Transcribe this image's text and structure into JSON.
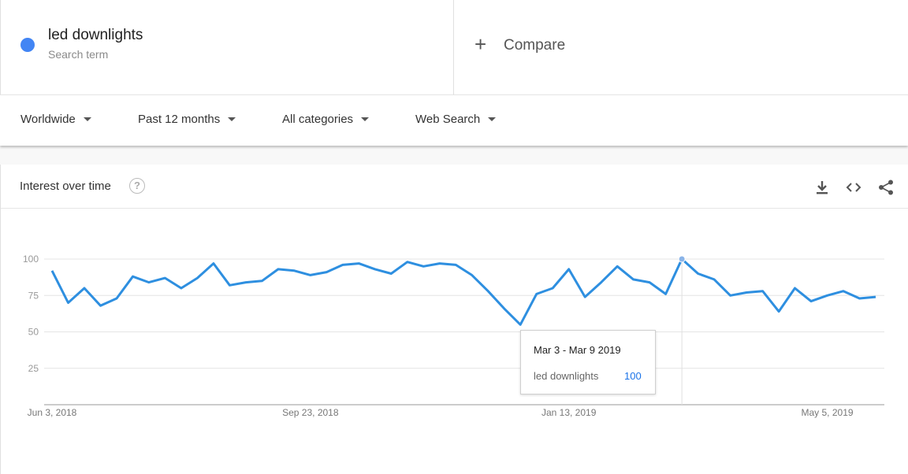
{
  "terms": [
    {
      "name": "led downlights",
      "type": "Search term",
      "color": "#4285f4"
    }
  ],
  "compare": {
    "label": "Compare",
    "icon": "plus-icon"
  },
  "filters": [
    {
      "label": "Worldwide"
    },
    {
      "label": "Past 12 months"
    },
    {
      "label": "All categories"
    },
    {
      "label": "Web Search"
    }
  ],
  "card": {
    "title": "Interest over time",
    "help_icon": "help-icon",
    "actions": [
      "download-icon",
      "embed-icon",
      "share-icon"
    ]
  },
  "tooltip": {
    "date": "Mar 3 - Mar 9 2019",
    "term": "led downlights",
    "value": "100"
  },
  "chart_data": {
    "type": "line",
    "title": "",
    "xlabel": "",
    "ylabel": "",
    "ylim": [
      0,
      100
    ],
    "y_ticks": [
      "100",
      "75",
      "50",
      "25"
    ],
    "x_ticks": [
      {
        "label": "Jun 3, 2018",
        "index": 0
      },
      {
        "label": "Sep 23, 2018",
        "index": 16
      },
      {
        "label": "Jan 13, 2019",
        "index": 32
      },
      {
        "label": "May 5, 2019",
        "index": 48
      }
    ],
    "grid": true,
    "highlight_index": 39,
    "series": [
      {
        "color": "#2e8fe0",
        "values": [
          92,
          70,
          80,
          68,
          73,
          88,
          84,
          87,
          80,
          87,
          97,
          82,
          84,
          85,
          93,
          92,
          89,
          91,
          96,
          97,
          93,
          90,
          98,
          95,
          97,
          96,
          89,
          78,
          66,
          55,
          76,
          80,
          93,
          74,
          84,
          95,
          86,
          84,
          76,
          100,
          90,
          86,
          75,
          77,
          78,
          64,
          80,
          71,
          75,
          78,
          73,
          74
        ]
      }
    ]
  }
}
